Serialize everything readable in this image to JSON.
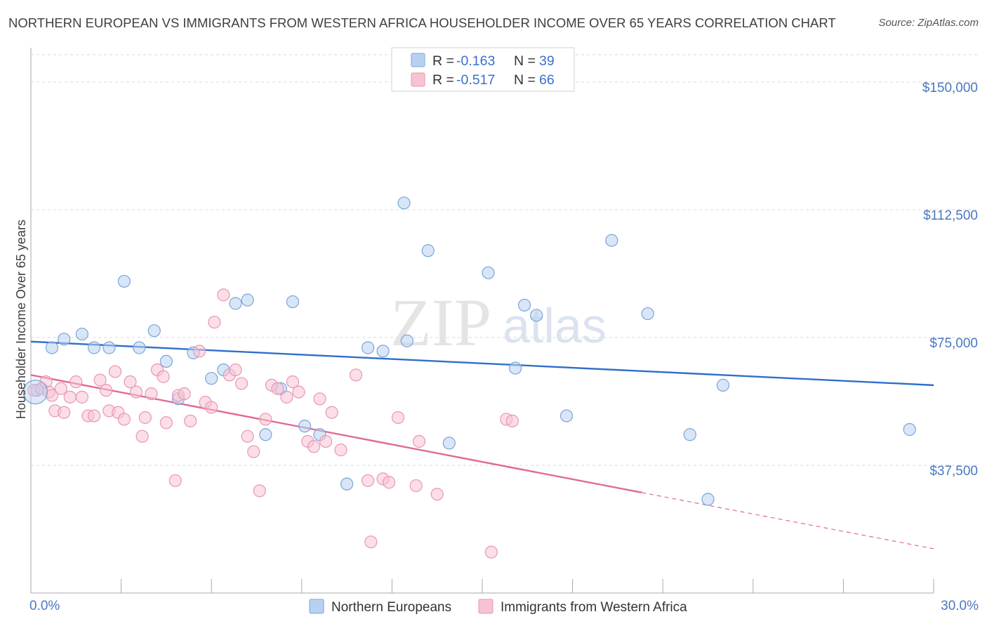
{
  "title": "NORTHERN EUROPEAN VS IMMIGRANTS FROM WESTERN AFRICA HOUSEHOLDER INCOME OVER 65 YEARS CORRELATION CHART",
  "source": "Source: ZipAtlas.com",
  "watermark": {
    "zip": "ZIP",
    "atlas": "atlas"
  },
  "colors": {
    "blue_fill": "#b9d1f1",
    "blue_stroke": "#7aa4db",
    "blue_line": "#2f6fcb",
    "pink_fill": "#f7c3d3",
    "pink_stroke": "#e996b2",
    "pink_line": "#e06a95",
    "grid": "#d9d9d9",
    "axis": "#aaaaaa"
  },
  "chart_data": {
    "type": "scatter",
    "title": "NORTHERN EUROPEAN VS IMMIGRANTS FROM WESTERN AFRICA HOUSEHOLDER INCOME OVER 65 YEARS CORRELATION CHART",
    "xlabel": "",
    "ylabel": "Householder Income Over 65 years",
    "xlim": [
      0,
      30
    ],
    "ylim": [
      0,
      158000
    ],
    "x_tick_labels": [
      {
        "value": 0,
        "label": "0.0%"
      },
      {
        "value": 30,
        "label": "30.0%"
      }
    ],
    "x_minor_ticks": [
      3,
      6,
      9,
      12,
      15,
      18,
      21,
      24,
      27,
      30
    ],
    "y_ticks": [
      {
        "value": 37500,
        "label": "$37,500"
      },
      {
        "value": 75000,
        "label": "$75,000"
      },
      {
        "value": 112500,
        "label": "$112,500"
      },
      {
        "value": 150000,
        "label": "$150,000"
      }
    ],
    "grid": true,
    "legend": {
      "position": "top-center",
      "entries": [
        {
          "series": "Northern Europeans",
          "r_label": "R =",
          "r_value": "-0.163",
          "n_label": "N =",
          "n_value": "39"
        },
        {
          "series": "Immigrants from Western Africa",
          "r_label": "R =",
          "r_value": "-0.517",
          "n_label": "N =",
          "n_value": "66"
        }
      ]
    },
    "series": [
      {
        "name": "Northern Europeans",
        "color": "blue",
        "trend": {
          "x0": 0,
          "y0": 73800,
          "x1": 30,
          "y1": 61000,
          "solid_to": 30
        },
        "points": [
          [
            0.2,
            59500
          ],
          [
            1.1,
            74500
          ],
          [
            1.7,
            76000
          ],
          [
            0.7,
            72000
          ],
          [
            2.1,
            72000
          ],
          [
            2.6,
            72000
          ],
          [
            3.1,
            91500
          ],
          [
            3.6,
            72000
          ],
          [
            4.1,
            77000
          ],
          [
            4.5,
            68000
          ],
          [
            4.9,
            57000
          ],
          [
            5.4,
            70500
          ],
          [
            6.0,
            63000
          ],
          [
            6.4,
            65500
          ],
          [
            6.8,
            85000
          ],
          [
            7.2,
            86000
          ],
          [
            7.8,
            46500
          ],
          [
            8.3,
            60000
          ],
          [
            8.7,
            85500
          ],
          [
            9.1,
            49000
          ],
          [
            9.6,
            46500
          ],
          [
            10.5,
            32000
          ],
          [
            11.2,
            72000
          ],
          [
            11.7,
            71000
          ],
          [
            12.4,
            114500
          ],
          [
            12.5,
            74000
          ],
          [
            13.2,
            100500
          ],
          [
            13.9,
            44000
          ],
          [
            15.2,
            94000
          ],
          [
            16.1,
            66000
          ],
          [
            16.4,
            84500
          ],
          [
            16.8,
            81500
          ],
          [
            17.8,
            52000
          ],
          [
            19.3,
            103500
          ],
          [
            20.5,
            82000
          ],
          [
            21.9,
            46500
          ],
          [
            22.5,
            27500
          ],
          [
            23.0,
            61000
          ],
          [
            29.2,
            48000
          ]
        ]
      },
      {
        "name": "Immigrants from Western Africa",
        "color": "pink",
        "trend": {
          "x0": 0,
          "y0": 64000,
          "x1": 30,
          "y1": 13000,
          "solid_to": 20.3
        },
        "points": [
          [
            0.1,
            59500
          ],
          [
            0.35,
            60000
          ],
          [
            0.5,
            62000
          ],
          [
            0.6,
            59000
          ],
          [
            0.7,
            58000
          ],
          [
            0.8,
            53500
          ],
          [
            1.0,
            60000
          ],
          [
            1.1,
            53000
          ],
          [
            1.3,
            57500
          ],
          [
            1.5,
            62000
          ],
          [
            1.7,
            57500
          ],
          [
            1.9,
            52000
          ],
          [
            2.1,
            52000
          ],
          [
            2.3,
            62500
          ],
          [
            2.5,
            59500
          ],
          [
            2.6,
            53500
          ],
          [
            2.8,
            65000
          ],
          [
            2.9,
            53000
          ],
          [
            3.1,
            51000
          ],
          [
            3.3,
            62000
          ],
          [
            3.5,
            59000
          ],
          [
            3.7,
            46000
          ],
          [
            3.8,
            51500
          ],
          [
            4.0,
            58500
          ],
          [
            4.2,
            65500
          ],
          [
            4.4,
            63500
          ],
          [
            4.5,
            50000
          ],
          [
            4.8,
            33000
          ],
          [
            4.9,
            58000
          ],
          [
            5.1,
            58500
          ],
          [
            5.3,
            50500
          ],
          [
            5.6,
            71000
          ],
          [
            5.8,
            56000
          ],
          [
            6.0,
            54500
          ],
          [
            6.1,
            79500
          ],
          [
            6.4,
            87500
          ],
          [
            6.6,
            64000
          ],
          [
            6.8,
            65500
          ],
          [
            7.0,
            61500
          ],
          [
            7.2,
            46000
          ],
          [
            7.4,
            41500
          ],
          [
            7.6,
            30000
          ],
          [
            7.8,
            51000
          ],
          [
            8.0,
            61000
          ],
          [
            8.2,
            60000
          ],
          [
            8.5,
            57500
          ],
          [
            8.7,
            62000
          ],
          [
            8.9,
            59000
          ],
          [
            9.2,
            44500
          ],
          [
            9.4,
            43000
          ],
          [
            9.6,
            57000
          ],
          [
            9.8,
            44500
          ],
          [
            10.0,
            53000
          ],
          [
            10.3,
            42000
          ],
          [
            10.8,
            64000
          ],
          [
            11.2,
            33000
          ],
          [
            11.3,
            15000
          ],
          [
            11.7,
            33500
          ],
          [
            11.9,
            32500
          ],
          [
            12.2,
            51500
          ],
          [
            12.8,
            31500
          ],
          [
            12.9,
            44500
          ],
          [
            13.5,
            29000
          ],
          [
            15.3,
            12000
          ],
          [
            15.8,
            51000
          ],
          [
            16.0,
            50500
          ]
        ]
      }
    ]
  },
  "bottom_legend": {
    "northern": "Northern Europeans",
    "western_africa": "Immigrants from Western Africa"
  }
}
